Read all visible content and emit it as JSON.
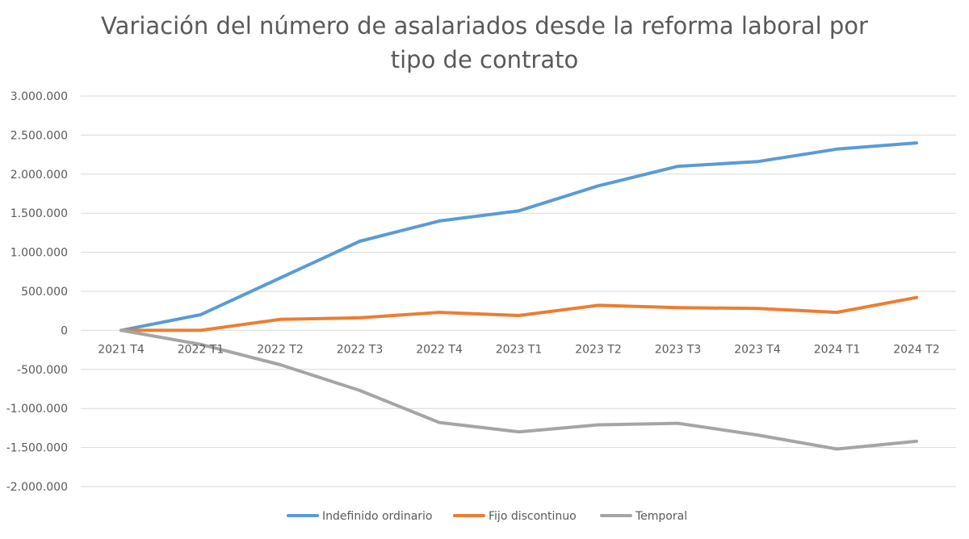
{
  "chart_data": {
    "type": "line",
    "title_lines": [
      "Variación del número de asalariados desde la reforma laboral por",
      "tipo de contrato"
    ],
    "xlabel": "",
    "ylabel": "",
    "categories": [
      "2021 T4",
      "2022 T1",
      "2022 T2",
      "2022 T3",
      "2022 T4",
      "2023 T1",
      "2023 T2",
      "2023 T3",
      "2023 T4",
      "2024 T1",
      "2024 T2"
    ],
    "y_ticks": [
      3000000,
      2500000,
      2000000,
      1500000,
      1000000,
      500000,
      0,
      -500000,
      -1000000,
      -1500000,
      -2000000
    ],
    "y_tick_labels": [
      "3.000.000",
      "2.500.000",
      "2.000.000",
      "1.500.000",
      "1.000.000",
      "500.000",
      "0",
      "-500.000",
      "-1.000.000",
      "-1.500.000",
      "-2.000.000"
    ],
    "ylim": [
      -2000000,
      3000000
    ],
    "grid": true,
    "legend_position": "bottom",
    "series": [
      {
        "name": "Indefinido ordinario",
        "color": "#5b9bd5",
        "values": [
          0,
          200000,
          670000,
          1140000,
          1400000,
          1530000,
          1850000,
          2100000,
          2160000,
          2320000,
          2400000
        ]
      },
      {
        "name": "Fijo discontinuo",
        "color": "#ed7d31",
        "values": [
          0,
          0,
          140000,
          160000,
          230000,
          190000,
          320000,
          290000,
          280000,
          230000,
          420000
        ]
      },
      {
        "name": "Temporal",
        "color": "#a5a5a5",
        "values": [
          0,
          -180000,
          -440000,
          -770000,
          -1180000,
          -1300000,
          -1210000,
          -1190000,
          -1340000,
          -1520000,
          -1420000
        ]
      }
    ]
  }
}
